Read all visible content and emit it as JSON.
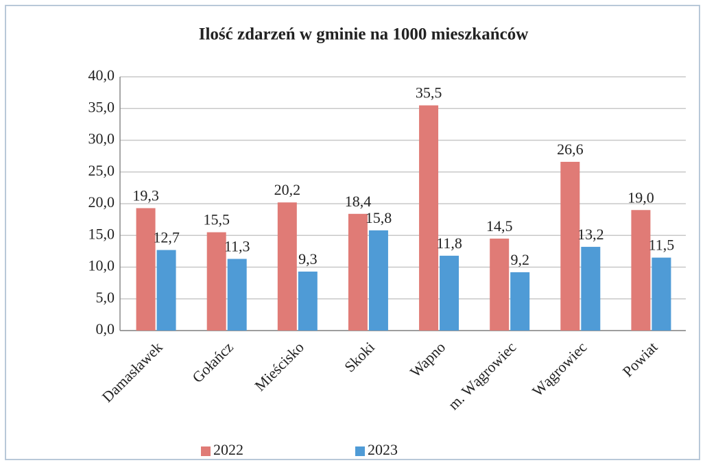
{
  "chart_data": {
    "type": "bar",
    "title": "Ilość zdarzeń w gminie na 1000 mieszkańców",
    "categories": [
      "Damasławek",
      "Gołańcz",
      "Mieścisko",
      "Skoki",
      "Wapno",
      "m. Wągrowiec",
      "Wągrowiec",
      "Powiat"
    ],
    "series": [
      {
        "name": "2022",
        "color": "#e07b76",
        "values": [
          19.3,
          15.5,
          20.2,
          18.4,
          35.5,
          14.5,
          26.6,
          19.0
        ],
        "value_labels": [
          "19,3",
          "15,5",
          "20,2",
          "18,4",
          "35,5",
          "14,5",
          "26,6",
          "19,0"
        ]
      },
      {
        "name": "2023",
        "color": "#4f9bd6",
        "values": [
          12.7,
          11.3,
          9.3,
          15.8,
          11.8,
          9.2,
          13.2,
          11.5
        ],
        "value_labels": [
          "12,7",
          "11,3",
          "9,3",
          "15,8",
          "11,8",
          "9,2",
          "13,2",
          "11,5"
        ]
      }
    ],
    "ylim": [
      0,
      40
    ],
    "yticks": [
      {
        "value": 0,
        "label": "0,0"
      },
      {
        "value": 5,
        "label": "5,0"
      },
      {
        "value": 10,
        "label": "10,0"
      },
      {
        "value": 15,
        "label": "15,0"
      },
      {
        "value": 20,
        "label": "20,0"
      },
      {
        "value": 25,
        "label": "25,0"
      },
      {
        "value": 30,
        "label": "30,0"
      },
      {
        "value": 35,
        "label": "35,0"
      },
      {
        "value": 40,
        "label": "40,0"
      }
    ],
    "grid": true,
    "legend": "bottom"
  }
}
